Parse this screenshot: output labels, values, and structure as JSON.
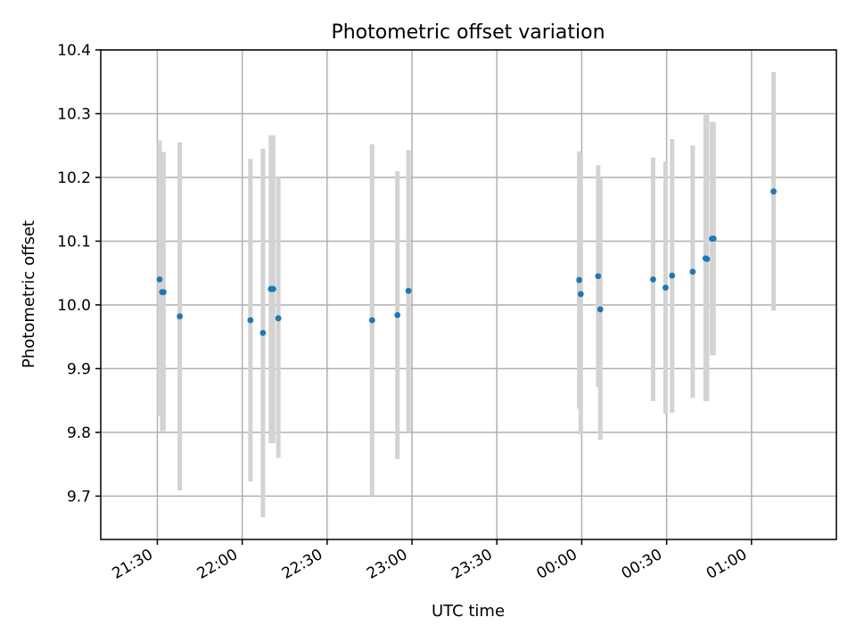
{
  "chart_data": {
    "type": "scatter",
    "title": "Photometric offset variation",
    "xlabel": "UTC time",
    "ylabel": "Photometric offset",
    "x_scale": "time",
    "xlim": [
      "21:10",
      "01:30 (+1 day)"
    ],
    "ylim": [
      9.632,
      10.4
    ],
    "x_ticks": [
      "21:30",
      "22:00",
      "22:30",
      "23:00",
      "23:30",
      "00:00",
      "00:30",
      "01:00"
    ],
    "y_ticks": [
      "9.7",
      "9.8",
      "9.9",
      "10.0",
      "10.1",
      "10.2",
      "10.3",
      "10.4"
    ],
    "y_tick_values": [
      9.7,
      9.8,
      9.9,
      10.0,
      10.1,
      10.2,
      10.3,
      10.4
    ],
    "grid": true,
    "marker_color": "#1f77b4",
    "errorbar_color": "#d3d3d3",
    "points": [
      {
        "time": "21:30:47",
        "y": 10.04,
        "ylow": 9.825,
        "yhigh": 10.258
      },
      {
        "time": "21:31:42",
        "y": 10.02,
        "ylow": 9.802,
        "yhigh": 10.24
      },
      {
        "time": "21:32:11",
        "y": 10.02,
        "ylow": 9.802,
        "yhigh": 10.24
      },
      {
        "time": "21:37:56",
        "y": 9.982,
        "ylow": 9.709,
        "yhigh": 10.255
      },
      {
        "time": "22:02:54",
        "y": 9.976,
        "ylow": 9.723,
        "yhigh": 10.229
      },
      {
        "time": "22:07:20",
        "y": 9.956,
        "ylow": 9.667,
        "yhigh": 10.245
      },
      {
        "time": "22:10:08",
        "y": 10.025,
        "ylow": 9.783,
        "yhigh": 10.266
      },
      {
        "time": "22:10:56",
        "y": 10.025,
        "ylow": 9.783,
        "yhigh": 10.266
      },
      {
        "time": "22:12:46",
        "y": 9.979,
        "ylow": 9.76,
        "yhigh": 10.2
      },
      {
        "time": "22:45:54",
        "y": 9.976,
        "ylow": 9.7,
        "yhigh": 10.252
      },
      {
        "time": "22:54:51",
        "y": 9.984,
        "ylow": 9.758,
        "yhigh": 10.21
      },
      {
        "time": "22:58:46",
        "y": 10.022,
        "ylow": 9.8,
        "yhigh": 10.243
      },
      {
        "time": "23:59:06",
        "y": 10.039,
        "ylow": 9.837,
        "yhigh": 10.241
      },
      {
        "time": "23:59:39",
        "y": 10.017,
        "ylow": 9.797,
        "yhigh": 10.237
      },
      {
        "time": "00:05:48",
        "y": 10.045,
        "ylow": 9.871,
        "yhigh": 10.219
      },
      {
        "time": "00:06:33",
        "y": 9.993,
        "ylow": 9.788,
        "yhigh": 10.198
      },
      {
        "time": "00:25:13",
        "y": 10.04,
        "ylow": 9.849,
        "yhigh": 10.231
      },
      {
        "time": "00:29:38",
        "y": 10.027,
        "ylow": 9.829,
        "yhigh": 10.225
      },
      {
        "time": "00:31:56",
        "y": 10.046,
        "ylow": 9.831,
        "yhigh": 10.26
      },
      {
        "time": "00:39:13",
        "y": 10.052,
        "ylow": 9.854,
        "yhigh": 10.25
      },
      {
        "time": "00:43:46",
        "y": 10.073,
        "ylow": 9.849,
        "yhigh": 10.298
      },
      {
        "time": "00:44:16",
        "y": 10.072,
        "ylow": 9.849,
        "yhigh": 10.298
      },
      {
        "time": "00:46:03",
        "y": 10.104,
        "ylow": 9.921,
        "yhigh": 10.287
      },
      {
        "time": "00:46:36",
        "y": 10.104,
        "ylow": 9.921,
        "yhigh": 10.287
      },
      {
        "time": "01:07:48",
        "y": 10.178,
        "ylow": 9.991,
        "yhigh": 10.365
      }
    ]
  }
}
